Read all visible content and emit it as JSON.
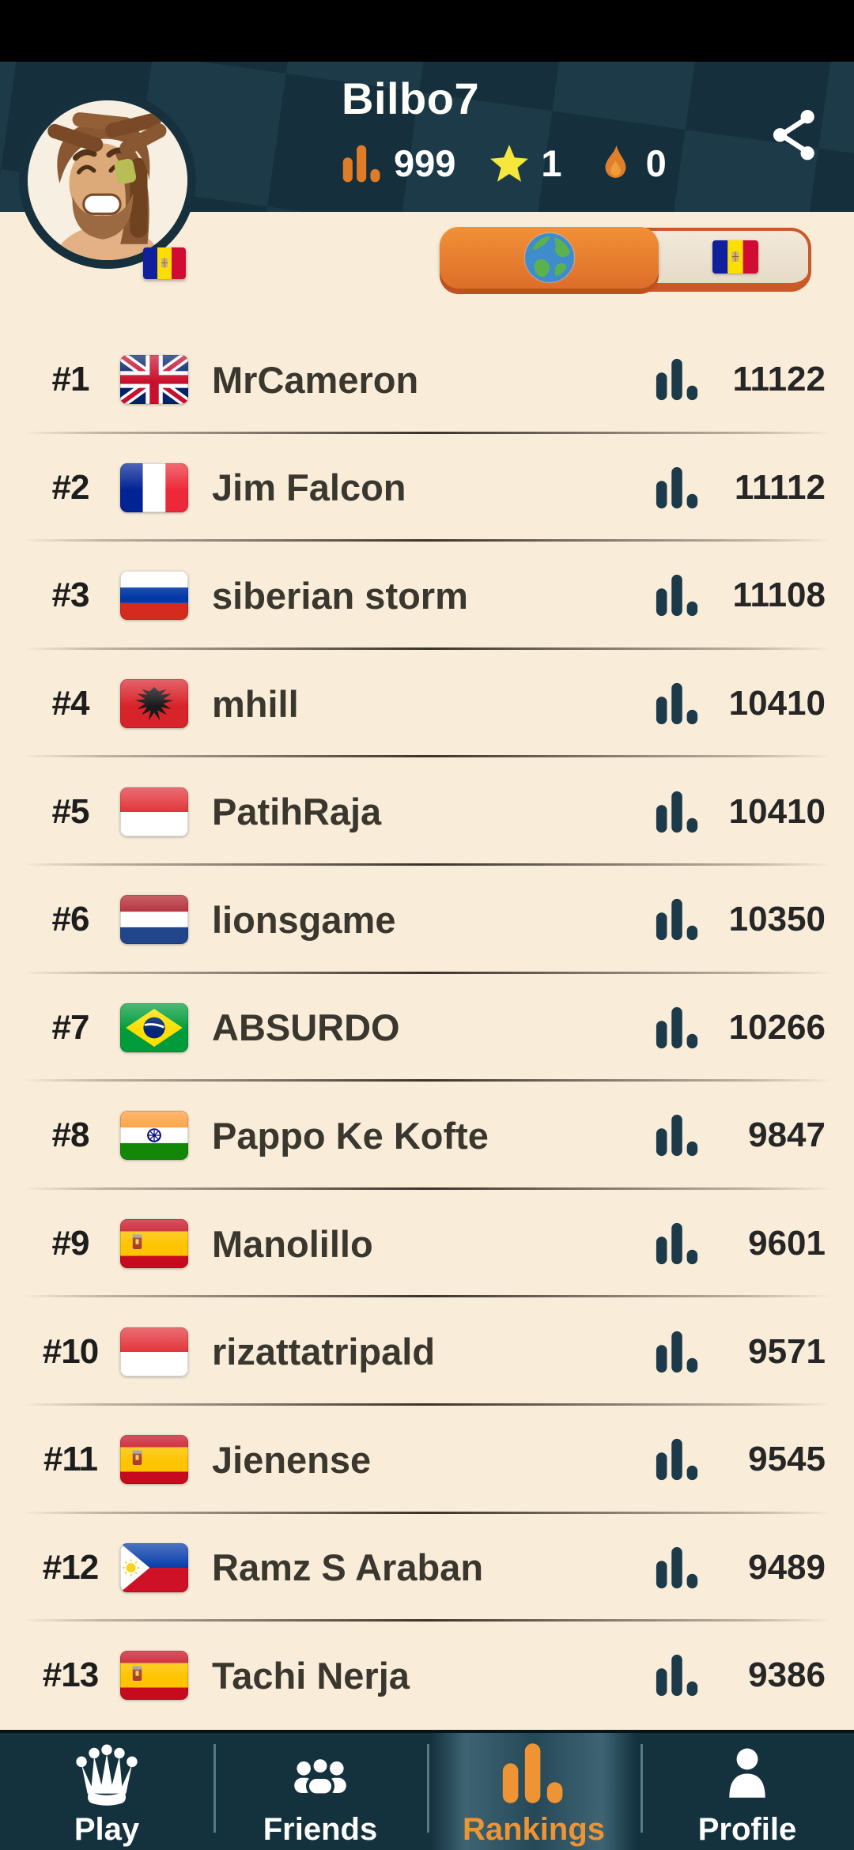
{
  "header": {
    "username": "Bilbo7",
    "stats": {
      "score_icon": "score-bars-icon",
      "score": "999",
      "star_icon": "star-icon",
      "stars": "1",
      "flame_icon": "flame-icon",
      "streak": "0"
    },
    "share_icon": "share-icon",
    "avatar": {
      "icon": "avatar-image",
      "flag": "ad",
      "flag_country": "Andorra"
    }
  },
  "filter_toggle": {
    "options": [
      {
        "id": "world",
        "icon": "globe-icon",
        "active": true
      },
      {
        "id": "country",
        "icon": "andorra-flag-icon",
        "flag": "ad",
        "active": false
      }
    ]
  },
  "rankings": {
    "rows": [
      {
        "rank": "#1",
        "flag": "gb",
        "country": "United Kingdom",
        "name": "MrCameron",
        "score": "11122"
      },
      {
        "rank": "#2",
        "flag": "fr",
        "country": "France",
        "name": "Jim Falcon",
        "score": "11112"
      },
      {
        "rank": "#3",
        "flag": "ru",
        "country": "Russia",
        "name": "siberian storm",
        "score": "11108"
      },
      {
        "rank": "#4",
        "flag": "al",
        "country": "Albania",
        "name": "mhill",
        "score": "10410"
      },
      {
        "rank": "#5",
        "flag": "id",
        "country": "Indonesia",
        "name": "PatihRaja",
        "score": "10410"
      },
      {
        "rank": "#6",
        "flag": "nl",
        "country": "Netherlands",
        "name": "lionsgame",
        "score": "10350"
      },
      {
        "rank": "#7",
        "flag": "br",
        "country": "Brazil",
        "name": "ABSURDO",
        "score": "10266"
      },
      {
        "rank": "#8",
        "flag": "in",
        "country": "India",
        "name": "Pappo Ke Kofte",
        "score": "9847"
      },
      {
        "rank": "#9",
        "flag": "es",
        "country": "Spain",
        "name": "Manolillo",
        "score": "9601"
      },
      {
        "rank": "#10",
        "flag": "id",
        "country": "Indonesia",
        "name": "rizattatripald",
        "score": "9571"
      },
      {
        "rank": "#11",
        "flag": "es",
        "country": "Spain",
        "name": "Jienense",
        "score": "9545"
      },
      {
        "rank": "#12",
        "flag": "ph",
        "country": "Philippines",
        "name": "Ramz S Araban",
        "score": "9489"
      },
      {
        "rank": "#13",
        "flag": "es",
        "country": "Spain",
        "name": "Tachi Nerja",
        "score": "9386"
      }
    ]
  },
  "bottom_nav": {
    "items": [
      {
        "id": "play",
        "label": "Play",
        "icon": "crown-icon",
        "active": false
      },
      {
        "id": "friends",
        "label": "Friends",
        "icon": "friends-icon",
        "active": false
      },
      {
        "id": "rankings",
        "label": "Rankings",
        "icon": "rankings-bars-icon",
        "active": true
      },
      {
        "id": "profile",
        "label": "Profile",
        "icon": "profile-icon",
        "active": false
      }
    ]
  },
  "colors": {
    "accent_orange": "#e8842e",
    "toggle_border_orange": "#cb5827",
    "header_navy": "#152f3c",
    "nav_navy": "#14323e",
    "background_beige": "#f9edda",
    "score_bar_navy": "#1c3a49",
    "active_nav_orange": "#ee9434",
    "star_yellow": "#f6e73c"
  }
}
